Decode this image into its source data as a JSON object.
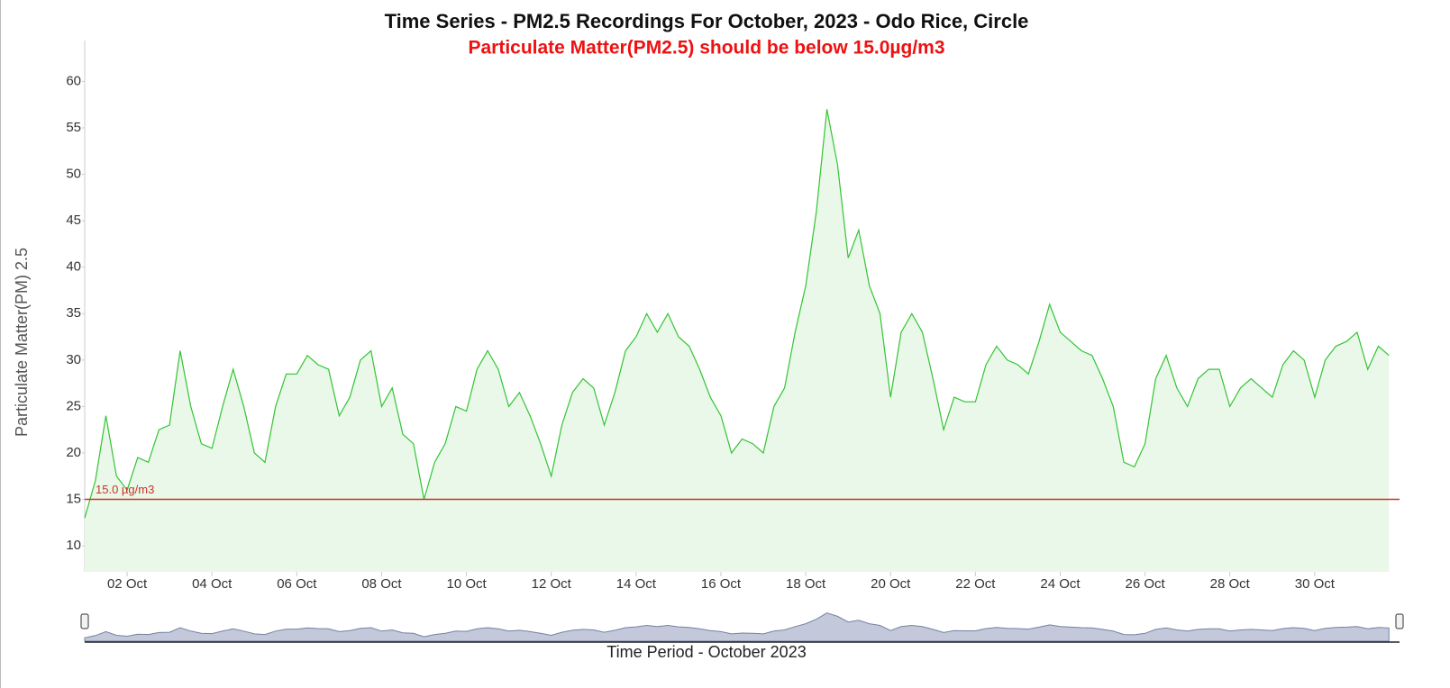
{
  "chart_data": {
    "type": "area",
    "title": "Time Series - PM2.5 Recordings For October, 2023 - Odo Rice, Circle",
    "subtitle": "Particulate Matter(PM2.5) should be below 15.0µg/m3",
    "y_label": "Particulate Matter(PM) 2.5",
    "x_label": "Time Period - October 2023",
    "zoom_input": "30",
    "threshold": {
      "value": 15,
      "label": "15.0 µg/m3",
      "color": "#cc3322"
    },
    "xlim": [
      1,
      32
    ],
    "ylim": [
      7.2,
      64.4
    ],
    "yticks": [
      10,
      15,
      20,
      25,
      30,
      35,
      40,
      45,
      50,
      55,
      60
    ],
    "xticks": [
      {
        "value": 2,
        "label": "02 Oct"
      },
      {
        "value": 4,
        "label": "04 Oct"
      },
      {
        "value": 6,
        "label": "06 Oct"
      },
      {
        "value": 8,
        "label": "08 Oct"
      },
      {
        "value": 10,
        "label": "10 Oct"
      },
      {
        "value": 12,
        "label": "12 Oct"
      },
      {
        "value": 14,
        "label": "14 Oct"
      },
      {
        "value": 16,
        "label": "16 Oct"
      },
      {
        "value": 18,
        "label": "18 Oct"
      },
      {
        "value": 20,
        "label": "20 Oct"
      },
      {
        "value": 22,
        "label": "22 Oct"
      },
      {
        "value": 24,
        "label": "24 Oct"
      },
      {
        "value": 26,
        "label": "26 Oct"
      },
      {
        "value": 28,
        "label": "28 Oct"
      },
      {
        "value": 30,
        "label": "30 Oct"
      }
    ],
    "x": [
      1,
      1.25,
      1.5,
      1.75,
      2,
      2.25,
      2.5,
      2.75,
      3,
      3.25,
      3.5,
      3.75,
      4,
      4.25,
      4.5,
      4.75,
      5,
      5.25,
      5.5,
      5.75,
      6,
      6.25,
      6.5,
      6.75,
      7,
      7.25,
      7.5,
      7.75,
      8,
      8.25,
      8.5,
      8.75,
      9,
      9.25,
      9.5,
      9.75,
      10,
      10.25,
      10.5,
      10.75,
      11,
      11.25,
      11.5,
      11.75,
      12,
      12.25,
      12.5,
      12.75,
      13,
      13.25,
      13.5,
      13.75,
      14,
      14.25,
      14.5,
      14.75,
      15,
      15.25,
      15.5,
      15.75,
      16,
      16.25,
      16.5,
      16.75,
      17,
      17.25,
      17.5,
      17.75,
      18,
      18.25,
      18.5,
      18.75,
      19,
      19.25,
      19.5,
      19.75,
      20,
      20.25,
      20.5,
      20.75,
      21,
      21.25,
      21.5,
      21.75,
      22,
      22.25,
      22.5,
      22.75,
      23,
      23.25,
      23.5,
      23.75,
      24,
      24.25,
      24.5,
      24.75,
      25,
      25.25,
      25.5,
      25.75,
      26,
      26.25,
      26.5,
      26.75,
      27,
      27.25,
      27.5,
      27.75,
      28,
      28.25,
      28.5,
      28.75,
      29,
      29.25,
      29.5,
      29.75,
      30,
      30.25,
      30.5,
      30.75,
      31,
      31.25,
      31.5,
      31.75
    ],
    "series": [
      {
        "name": "PM2.5",
        "color": "#33c433",
        "fill": "#e9f8e9",
        "values": [
          13,
          17,
          24,
          17.5,
          16,
          19.5,
          19,
          22.5,
          23,
          31,
          25,
          21,
          20.5,
          25,
          29,
          25,
          20,
          19,
          25,
          28.5,
          28.5,
          30.5,
          29.5,
          29,
          24,
          26,
          30,
          31,
          25,
          27,
          22,
          21,
          15,
          19,
          21,
          25,
          24.5,
          29,
          31,
          29,
          25,
          26.5,
          24,
          21,
          17.5,
          23,
          26.5,
          28,
          27,
          23,
          26.5,
          31,
          32.5,
          35,
          33,
          35,
          32.5,
          31.5,
          29,
          26,
          24,
          20,
          21.5,
          21,
          20,
          25,
          27,
          33,
          38,
          46,
          57,
          51,
          41,
          44,
          38,
          35,
          26,
          33,
          35,
          33,
          28,
          22.5,
          26,
          25.5,
          25.5,
          29.5,
          31.5,
          30,
          29.5,
          28.5,
          32,
          36,
          33,
          32,
          31,
          30.5,
          28,
          25,
          19,
          18.5,
          21,
          28,
          30.5,
          27,
          25,
          28,
          29,
          29,
          25,
          27,
          28,
          27,
          26,
          29.5,
          31,
          30,
          26,
          30,
          31.5,
          32,
          33,
          29,
          31.5,
          30.5
        ]
      }
    ]
  }
}
